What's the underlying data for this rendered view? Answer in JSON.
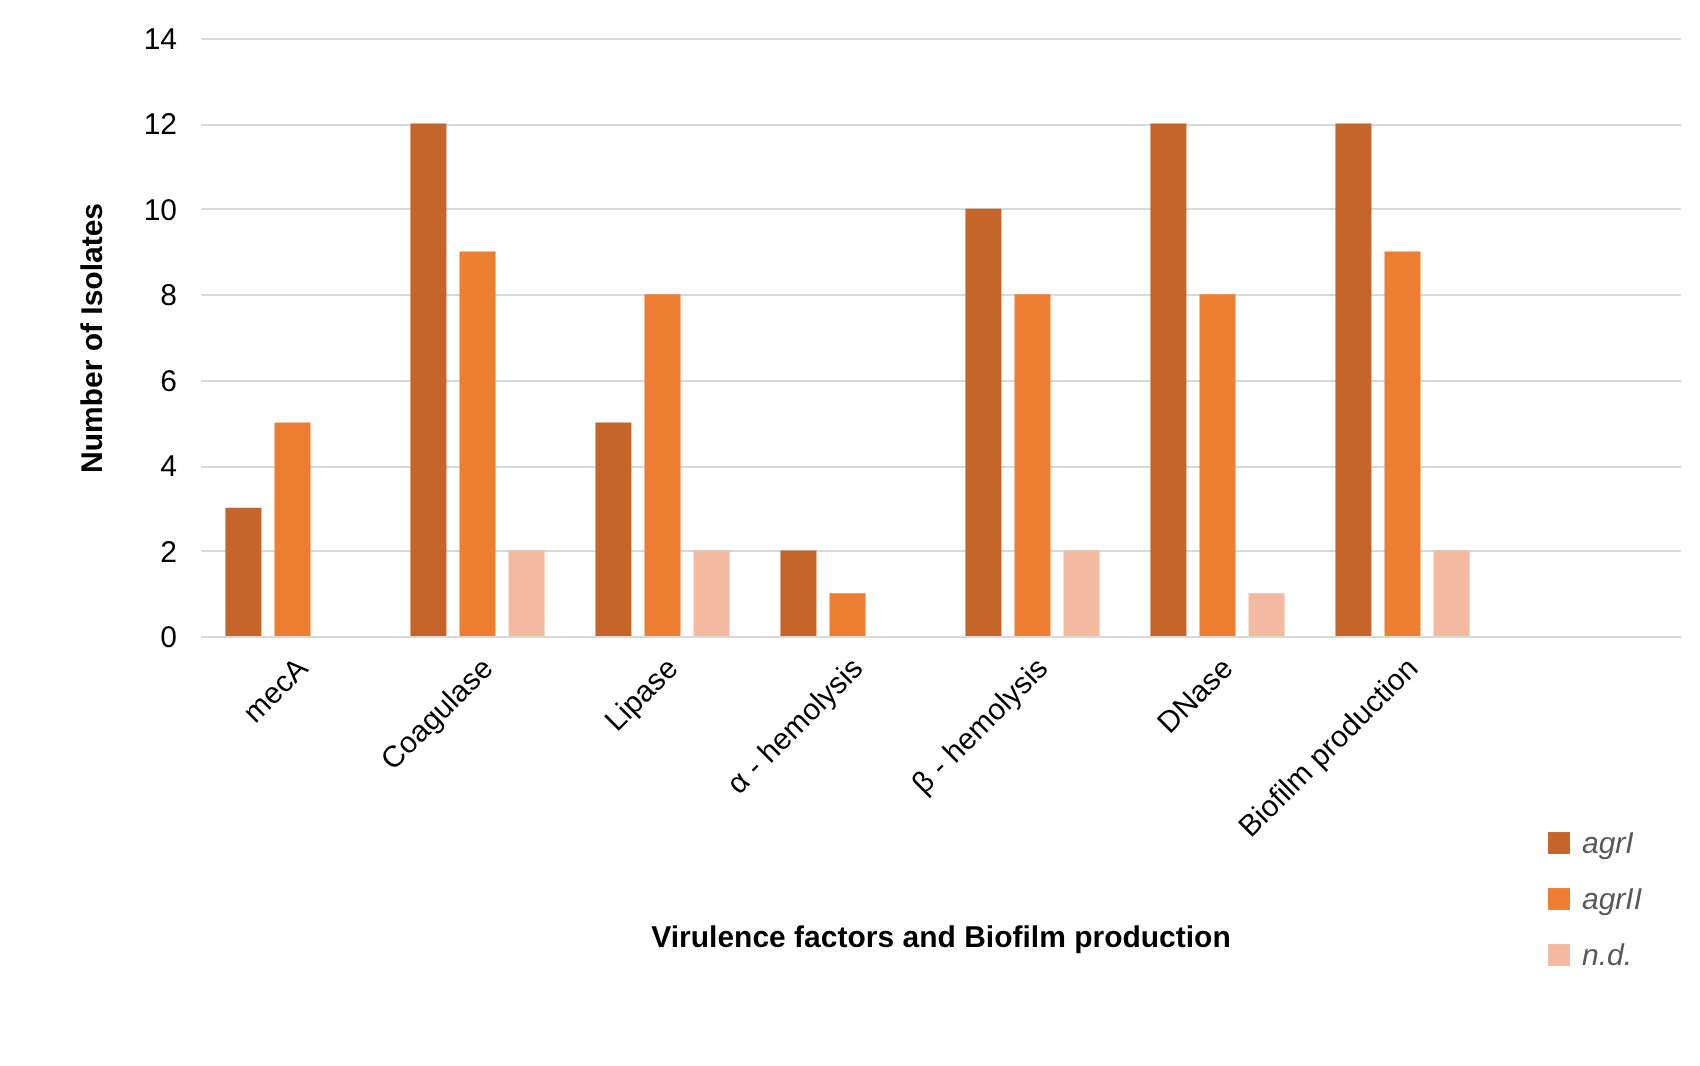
{
  "chart_data": {
    "type": "bar",
    "xlabel": "Virulence factors and Biofilm production",
    "ylabel": "Number of Isolates",
    "categories": [
      "mecA",
      "Coagulase",
      "Lipase",
      "α - hemolysis",
      "β - hemolysis",
      "DNase",
      "Biofilm production",
      null
    ],
    "series": [
      {
        "name": "agrI",
        "color": "#c5652a",
        "values": [
          3,
          12,
          5,
          2,
          10,
          12,
          12,
          null
        ]
      },
      {
        "name": "agrII",
        "color": "#ed7d31",
        "values": [
          5,
          9,
          8,
          1,
          8,
          8,
          9,
          null
        ]
      },
      {
        "name": "n.d.",
        "color": "#f4b9a1",
        "values": [
          null,
          2,
          2,
          null,
          2,
          1,
          2,
          null
        ]
      }
    ],
    "ylim": [
      0,
      14
    ],
    "yticks": [
      0,
      2,
      4,
      6,
      8,
      10,
      12,
      14
    ],
    "grid": "y",
    "legend": "bottom right"
  }
}
